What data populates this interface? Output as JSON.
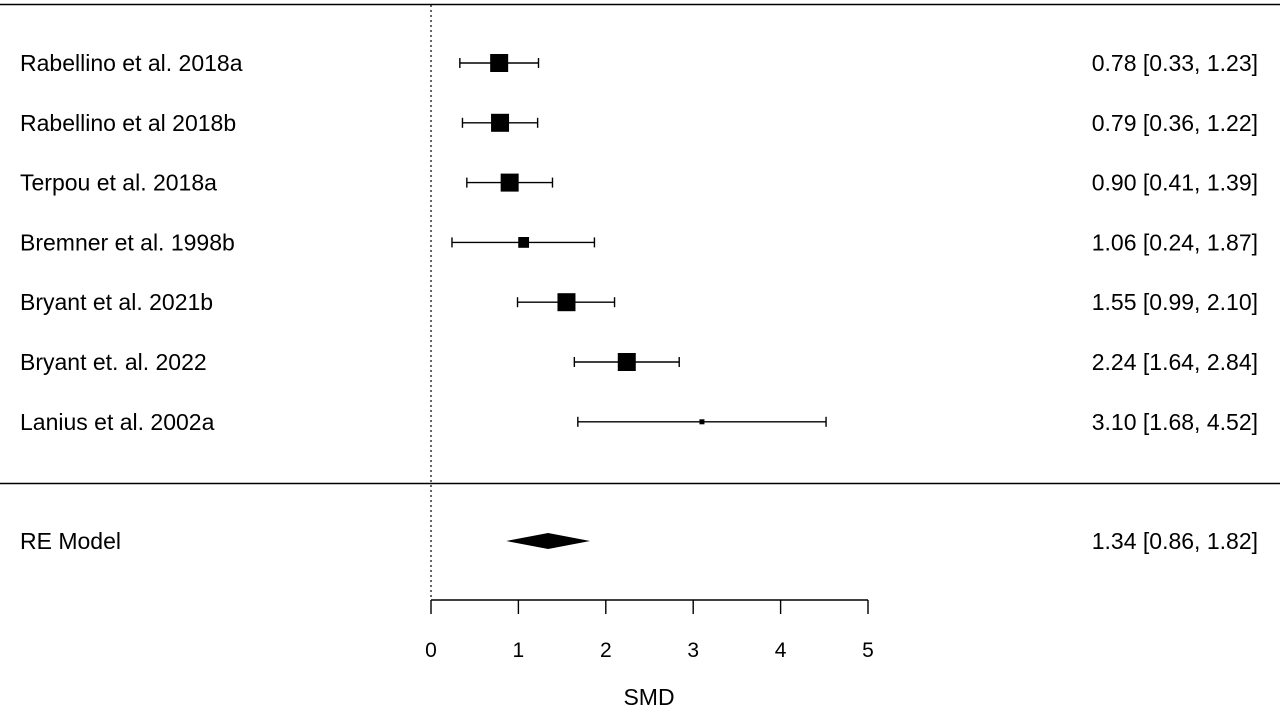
{
  "chart_data": {
    "type": "forest",
    "xlabel": "SMD",
    "xlim": [
      0,
      5
    ],
    "xticks": [
      0,
      1,
      2,
      3,
      4,
      5
    ],
    "reference_line": 0,
    "studies": [
      {
        "label": "Rabellino et al. 2018a",
        "estimate": 0.78,
        "ci_low": 0.33,
        "ci_high": 1.23,
        "weight": 1.0,
        "text": "0.78 [0.33, 1.23]"
      },
      {
        "label": "Rabellino et al 2018b",
        "estimate": 0.79,
        "ci_low": 0.36,
        "ci_high": 1.22,
        "weight": 1.0,
        "text": "0.79 [0.36, 1.22]"
      },
      {
        "label": "Terpou et al. 2018a",
        "estimate": 0.9,
        "ci_low": 0.41,
        "ci_high": 1.39,
        "weight": 1.0,
        "text": "0.90 [0.41, 1.39]"
      },
      {
        "label": "Bremner et al. 1998b",
        "estimate": 1.06,
        "ci_low": 0.24,
        "ci_high": 1.87,
        "weight": 0.6,
        "text": "1.06 [0.24, 1.87]"
      },
      {
        "label": "Bryant et al. 2021b",
        "estimate": 1.55,
        "ci_low": 0.99,
        "ci_high": 2.1,
        "weight": 1.0,
        "text": "1.55 [0.99, 2.10]"
      },
      {
        "label": "Bryant et. al. 2022",
        "estimate": 2.24,
        "ci_low": 1.64,
        "ci_high": 2.84,
        "weight": 1.0,
        "text": "2.24 [1.64, 2.84]"
      },
      {
        "label": "Lanius et al. 2002a",
        "estimate": 3.1,
        "ci_low": 1.68,
        "ci_high": 4.52,
        "weight": 0.25,
        "text": "3.10 [1.68, 4.52]"
      }
    ],
    "summary": {
      "label": "RE Model",
      "estimate": 1.34,
      "ci_low": 0.86,
      "ci_high": 1.82,
      "text": "1.34 [0.86, 1.82]"
    }
  }
}
